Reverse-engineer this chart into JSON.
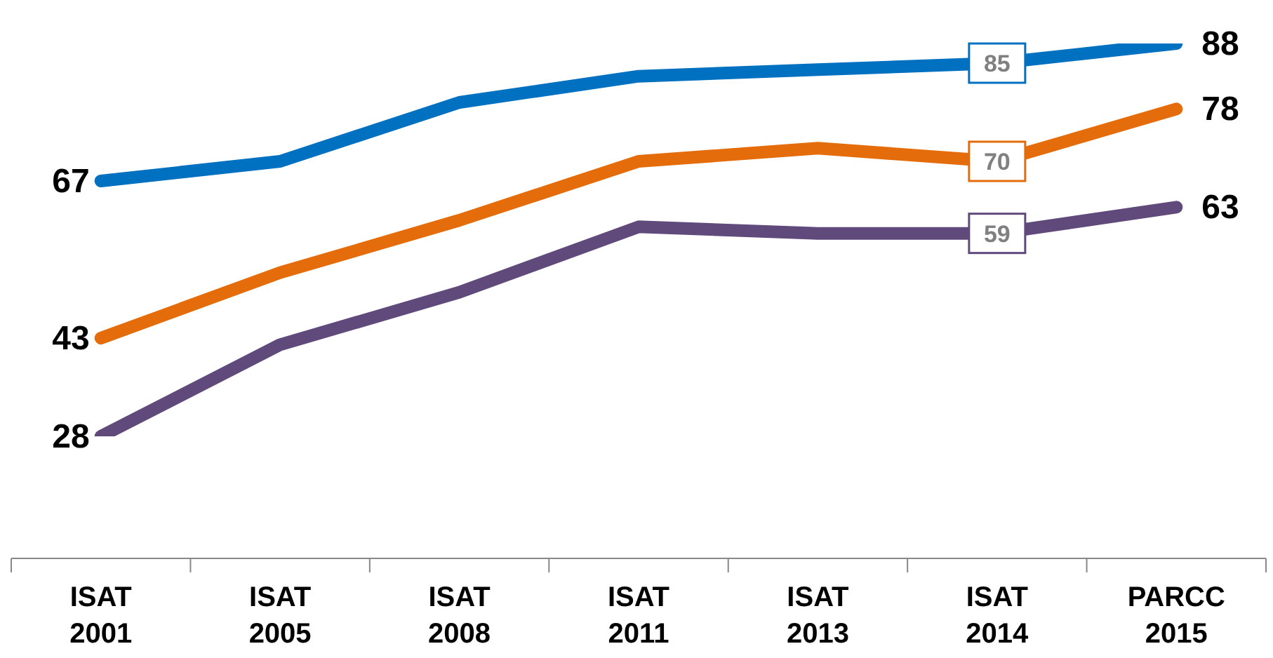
{
  "chart_data": {
    "type": "line",
    "categories": [
      "ISAT 2001",
      "ISAT 2005",
      "ISAT 2008",
      "ISAT 2011",
      "ISAT 2013",
      "ISAT 2014",
      "PARCC 2015"
    ],
    "series": [
      {
        "color": "#0070c0",
        "values": [
          67,
          70,
          79,
          83,
          84,
          85,
          88
        ],
        "value_labels": [
          "67",
          null,
          null,
          null,
          null,
          "85",
          "88"
        ]
      },
      {
        "color": "#e46c0a",
        "values": [
          43,
          53,
          61,
          70,
          72,
          70,
          78
        ],
        "value_labels": [
          "43",
          null,
          null,
          null,
          null,
          "70",
          "78"
        ]
      },
      {
        "color": "#604a7b",
        "values": [
          28,
          42,
          50,
          60,
          59,
          59,
          63
        ],
        "value_labels": [
          "28",
          null,
          null,
          null,
          null,
          "59",
          "63"
        ]
      }
    ],
    "tick_labels": "x",
    "grid": false,
    "legend": false,
    "marker": "none",
    "line_style": "solid"
  }
}
